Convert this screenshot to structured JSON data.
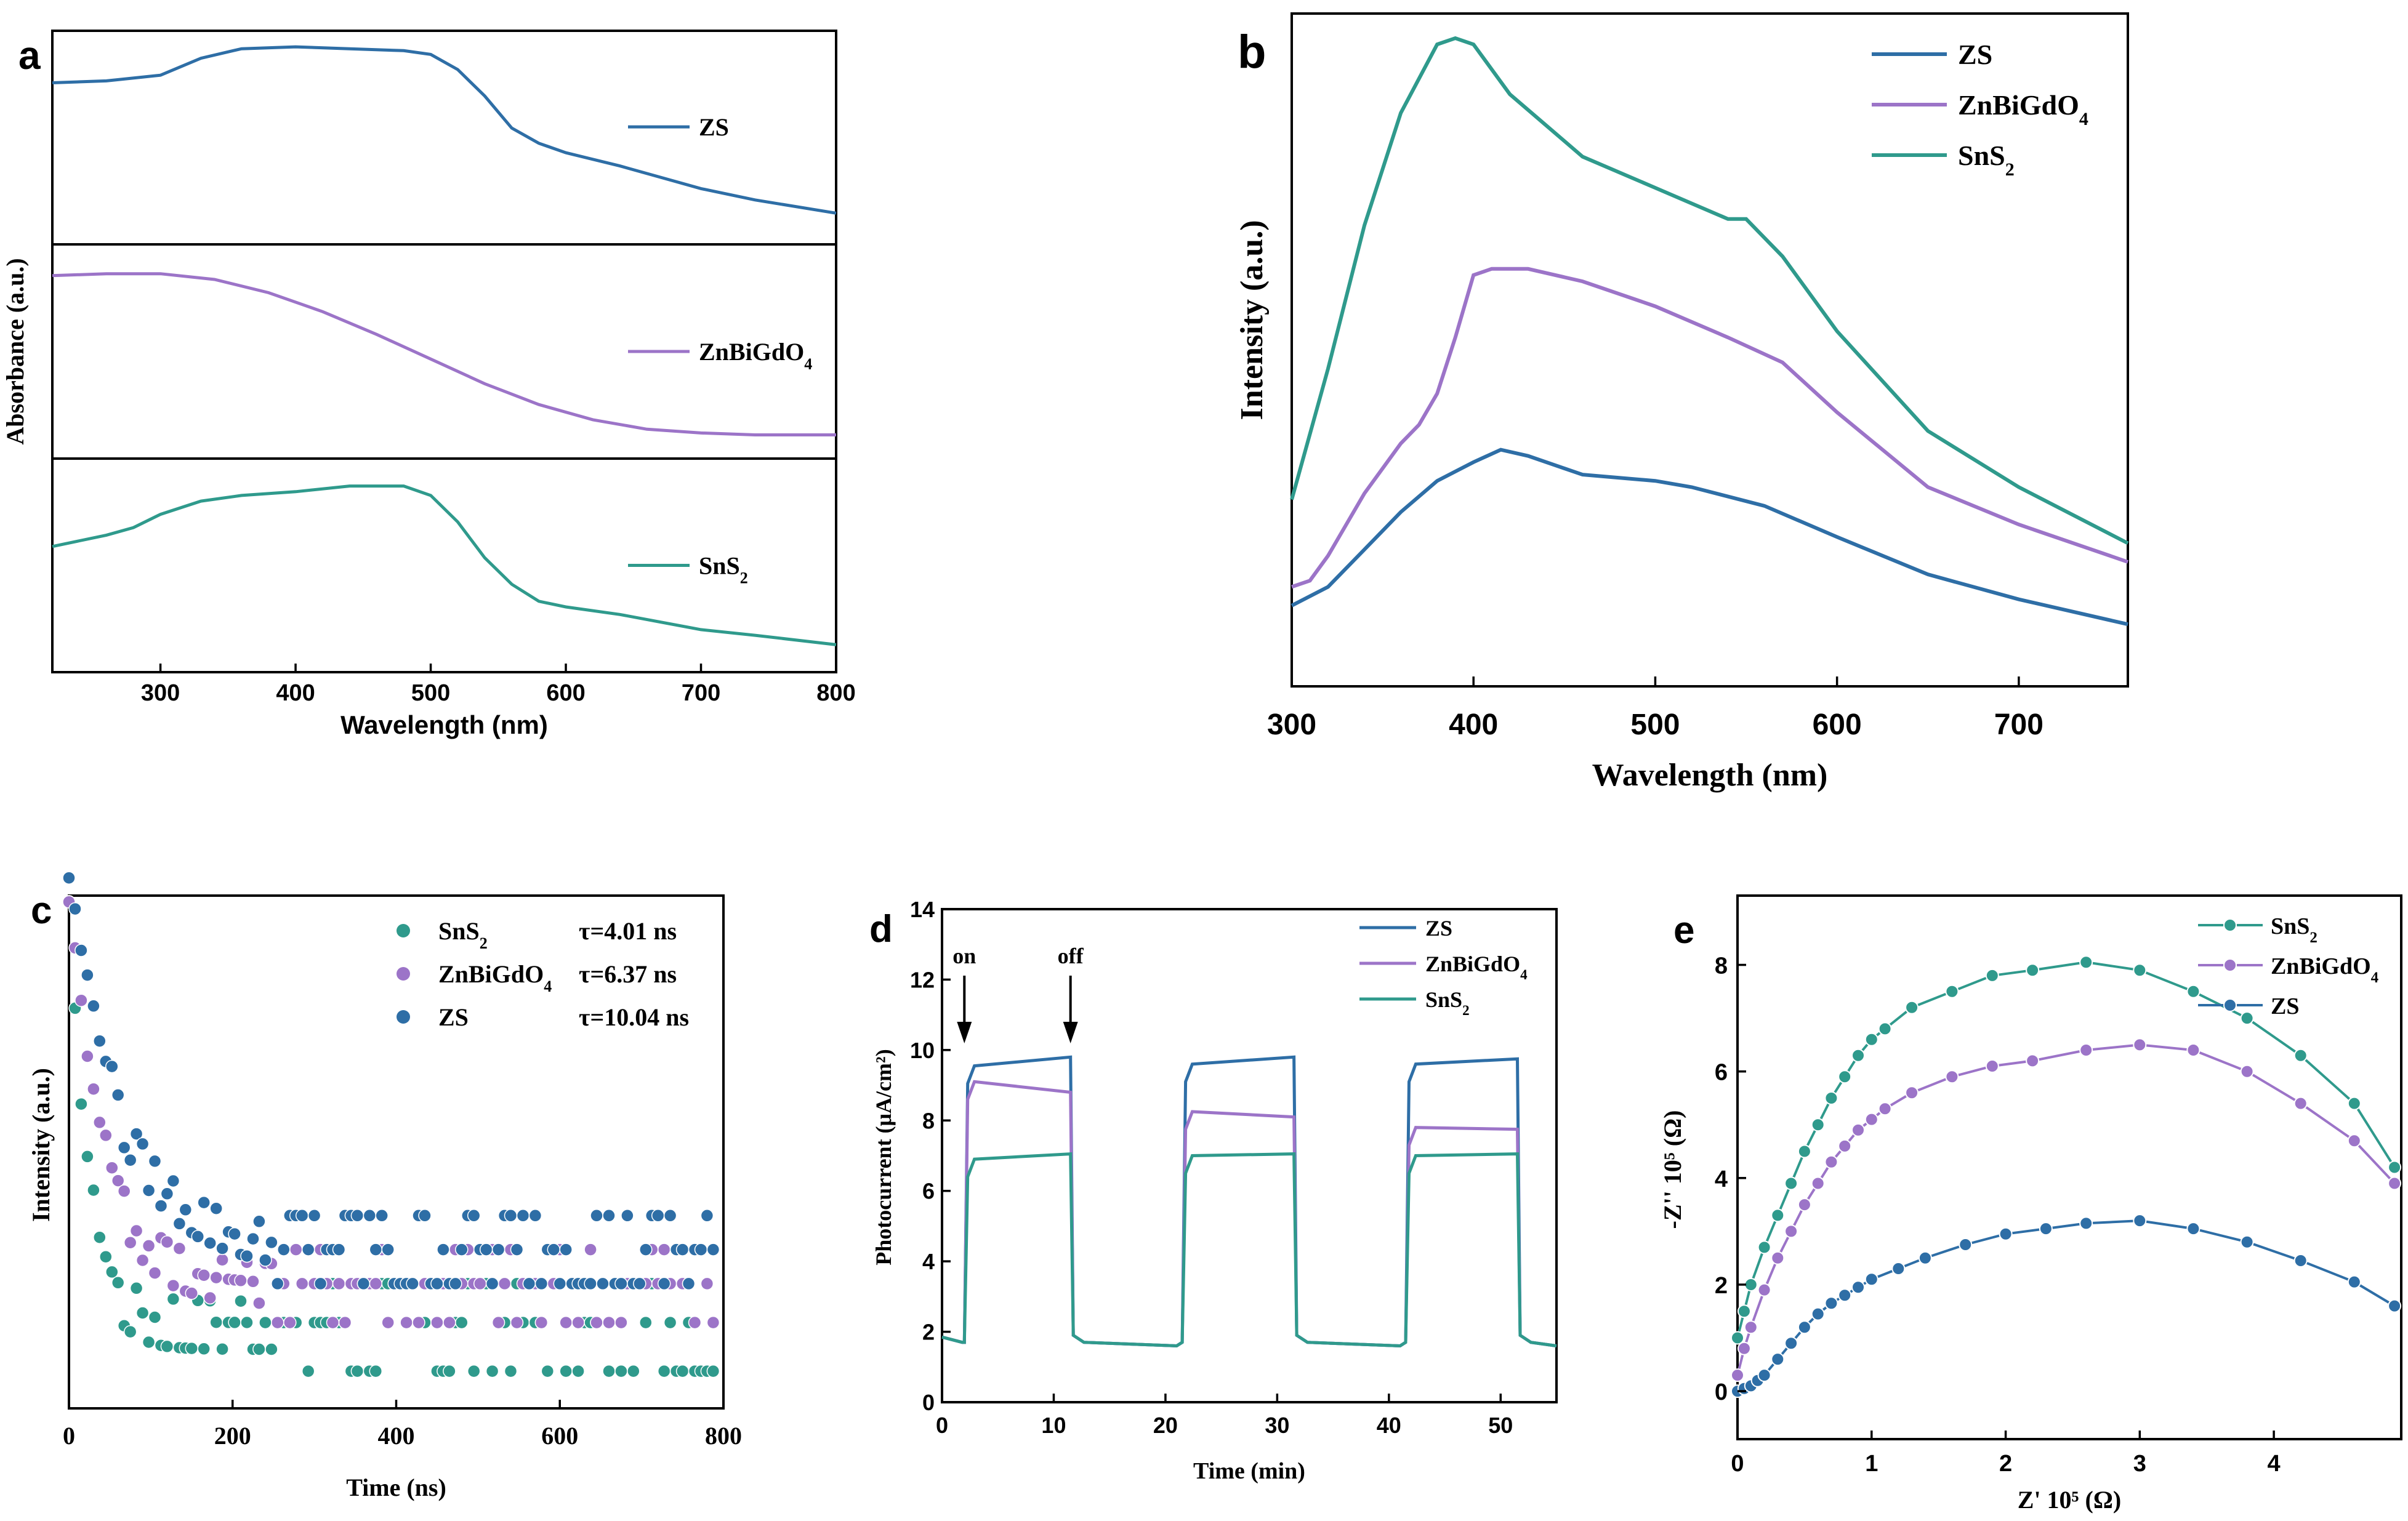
{
  "colors": {
    "zs": "#2e6ea6",
    "znbi": "#9c74c8",
    "sns2": "#2f9a8c"
  },
  "chart_data": [
    {
      "id": "a",
      "panel_label": "a",
      "type": "line",
      "xlabel": "Wavelength (nm)",
      "ylabel": "Absorbance (a.u.)",
      "xlim": [
        220,
        800
      ],
      "xticks": [
        300,
        400,
        500,
        600,
        700,
        800
      ],
      "stacked_panels": true,
      "series": [
        {
          "name": "ZS",
          "sub": "",
          "color_key": "zs",
          "x": [
            220,
            260,
            300,
            330,
            360,
            400,
            440,
            480,
            500,
            520,
            540,
            560,
            580,
            600,
            640,
            680,
            700,
            740,
            800
          ],
          "y": [
            0.79,
            0.8,
            0.83,
            0.92,
            0.97,
            0.98,
            0.97,
            0.96,
            0.94,
            0.86,
            0.72,
            0.55,
            0.47,
            0.42,
            0.35,
            0.27,
            0.23,
            0.17,
            0.1
          ]
        },
        {
          "name": "ZnBiGdO",
          "sub": "4",
          "color_key": "znbi",
          "x": [
            220,
            260,
            300,
            340,
            380,
            420,
            460,
            500,
            540,
            580,
            620,
            660,
            700,
            740,
            800
          ],
          "y": [
            0.9,
            0.91,
            0.91,
            0.88,
            0.81,
            0.71,
            0.59,
            0.46,
            0.33,
            0.22,
            0.14,
            0.09,
            0.07,
            0.06,
            0.06
          ]
        },
        {
          "name": "SnS",
          "sub": "2",
          "color_key": "sns2",
          "x": [
            220,
            260,
            280,
            300,
            330,
            360,
            400,
            440,
            480,
            500,
            520,
            540,
            560,
            580,
            600,
            640,
            700,
            740,
            800
          ],
          "y": [
            0.6,
            0.66,
            0.7,
            0.77,
            0.84,
            0.87,
            0.89,
            0.92,
            0.92,
            0.87,
            0.73,
            0.54,
            0.4,
            0.31,
            0.28,
            0.24,
            0.16,
            0.13,
            0.08
          ]
        }
      ]
    },
    {
      "id": "b",
      "panel_label": "b",
      "type": "line",
      "xlabel": "Wavelength (nm)",
      "ylabel": "Intensity (a.u.)",
      "xlim": [
        300,
        760
      ],
      "ylim": [
        0,
        1
      ],
      "xticks": [
        300,
        400,
        500,
        600,
        700
      ],
      "series": [
        {
          "name": "ZS",
          "sub": "",
          "color_key": "zs",
          "x": [
            300,
            320,
            340,
            360,
            380,
            400,
            415,
            430,
            460,
            500,
            520,
            560,
            600,
            650,
            700,
            760
          ],
          "y": [
            0.09,
            0.12,
            0.18,
            0.24,
            0.29,
            0.32,
            0.34,
            0.33,
            0.3,
            0.29,
            0.28,
            0.25,
            0.2,
            0.14,
            0.1,
            0.06
          ]
        },
        {
          "name": "ZnBiGdO",
          "sub": "4",
          "color_key": "znbi",
          "x": [
            300,
            310,
            320,
            340,
            360,
            370,
            380,
            390,
            400,
            410,
            430,
            460,
            500,
            540,
            570,
            600,
            650,
            700,
            760
          ],
          "y": [
            0.12,
            0.13,
            0.17,
            0.27,
            0.35,
            0.38,
            0.43,
            0.52,
            0.62,
            0.63,
            0.63,
            0.61,
            0.57,
            0.52,
            0.48,
            0.4,
            0.28,
            0.22,
            0.16
          ]
        },
        {
          "name": "SnS",
          "sub": "2",
          "color_key": "sns2",
          "x": [
            300,
            320,
            340,
            360,
            380,
            390,
            400,
            420,
            440,
            460,
            500,
            540,
            550,
            570,
            600,
            650,
            700,
            760
          ],
          "y": [
            0.26,
            0.47,
            0.7,
            0.88,
            0.99,
            1.0,
            0.99,
            0.91,
            0.86,
            0.81,
            0.76,
            0.71,
            0.71,
            0.65,
            0.53,
            0.37,
            0.28,
            0.19
          ]
        }
      ]
    },
    {
      "id": "c",
      "panel_label": "c",
      "type": "scatter",
      "xlabel": "Time (ns)",
      "ylabel": "Intensity (a.u.)",
      "xlim": [
        0,
        800
      ],
      "ylim": [
        0,
        1
      ],
      "xticks": [
        0,
        200,
        400,
        600,
        800
      ],
      "series": [
        {
          "name": "SnS",
          "sub": "2",
          "color_key": "sns2",
          "tau_label": "τ=4.01 ns",
          "tau_ns": 4.01,
          "amp": 0.85,
          "tau_fit": 25,
          "floor": 0.16,
          "levels": [
            0.06,
            0.16,
            0.24
          ]
        },
        {
          "name": "ZnBiGdO",
          "sub": "4",
          "color_key": "znbi",
          "tau_label": "τ=6.37 ns",
          "tau_ns": 6.37,
          "amp": 0.8,
          "tau_fit": 45,
          "floor": 0.24,
          "levels": [
            0.16,
            0.24,
            0.31
          ]
        },
        {
          "name": "ZS",
          "sub": "",
          "color_key": "zs",
          "tau_label": "τ=10.04 ns",
          "tau_ns": 10.04,
          "amp": 0.78,
          "tau_fit": 70,
          "floor": 0.3,
          "levels": [
            0.24,
            0.31,
            0.38
          ]
        }
      ]
    },
    {
      "id": "d",
      "panel_label": "d",
      "type": "line",
      "xlabel": "Time (min)",
      "ylabel": "Photocurrent (μA/cm²)",
      "xlim": [
        0,
        55
      ],
      "ylim": [
        0,
        14
      ],
      "xticks": [
        0,
        10,
        20,
        30,
        40,
        50
      ],
      "yticks": [
        0,
        2,
        4,
        6,
        8,
        10,
        12,
        14
      ],
      "annotations": [
        {
          "text": "on",
          "x": 2
        },
        {
          "text": "off",
          "x": 11.5
        }
      ],
      "cycles": [
        [
          2,
          11.5
        ],
        [
          21.5,
          31.5
        ],
        [
          41.5,
          51.5
        ]
      ],
      "series": [
        {
          "name": "ZS",
          "sub": "",
          "color_key": "zs",
          "dark": 1.6,
          "on_start": [
            9.55,
            9.6,
            9.6
          ],
          "on_end": [
            9.8,
            9.8,
            9.75
          ]
        },
        {
          "name": "ZnBiGdO",
          "sub": "4",
          "color_key": "znbi",
          "dark": 1.6,
          "on_start": [
            9.1,
            8.25,
            7.8
          ],
          "on_end": [
            8.8,
            8.1,
            7.75
          ]
        },
        {
          "name": "SnS",
          "sub": "2",
          "color_key": "sns2",
          "dark": 1.6,
          "on_start": [
            6.9,
            7.0,
            7.0
          ],
          "on_end": [
            7.05,
            7.05,
            7.05
          ]
        }
      ]
    },
    {
      "id": "e",
      "panel_label": "e",
      "type": "line",
      "xlabel": "Z' 10⁵ (Ω)",
      "ylabel": "-Z'' 10⁵ (Ω)",
      "xlim": [
        0,
        4.95
      ],
      "ylim": [
        -0.9,
        9.3
      ],
      "xticks": [
        0,
        1,
        2,
        3,
        4
      ],
      "yticks": [
        0,
        2,
        4,
        6,
        8
      ],
      "series": [
        {
          "name": "SnS",
          "sub": "2",
          "color_key": "sns2",
          "x": [
            0,
            0.05,
            0.1,
            0.2,
            0.3,
            0.4,
            0.5,
            0.6,
            0.7,
            0.8,
            0.9,
            1.0,
            1.1,
            1.3,
            1.6,
            1.9,
            2.2,
            2.6,
            3.0,
            3.4,
            3.8,
            4.2,
            4.6,
            4.9
          ],
          "y": [
            1.0,
            1.5,
            2.0,
            2.7,
            3.3,
            3.9,
            4.5,
            5.0,
            5.5,
            5.9,
            6.3,
            6.6,
            6.8,
            7.2,
            7.5,
            7.8,
            7.9,
            8.05,
            7.9,
            7.5,
            7.0,
            6.3,
            5.4,
            4.2
          ]
        },
        {
          "name": "ZnBiGdO",
          "sub": "4",
          "color_key": "znbi",
          "x": [
            0,
            0.05,
            0.1,
            0.2,
            0.3,
            0.4,
            0.5,
            0.6,
            0.7,
            0.8,
            0.9,
            1.0,
            1.1,
            1.3,
            1.6,
            1.9,
            2.2,
            2.6,
            3.0,
            3.4,
            3.8,
            4.2,
            4.6,
            4.9
          ],
          "y": [
            0.3,
            0.8,
            1.2,
            1.9,
            2.5,
            3.0,
            3.5,
            3.9,
            4.3,
            4.6,
            4.9,
            5.1,
            5.3,
            5.6,
            5.9,
            6.1,
            6.2,
            6.4,
            6.5,
            6.4,
            6.0,
            5.4,
            4.7,
            3.9
          ]
        },
        {
          "name": "ZS",
          "sub": "",
          "color_key": "zs",
          "x": [
            0,
            0.05,
            0.1,
            0.15,
            0.2,
            0.3,
            0.4,
            0.5,
            0.6,
            0.7,
            0.8,
            0.9,
            1.0,
            1.2,
            1.4,
            1.7,
            2.0,
            2.3,
            2.6,
            3.0,
            3.4,
            3.8,
            4.2,
            4.6,
            4.9
          ],
          "y": [
            0.0,
            0.05,
            0.1,
            0.2,
            0.3,
            0.6,
            0.9,
            1.2,
            1.45,
            1.65,
            1.8,
            1.95,
            2.1,
            2.3,
            2.5,
            2.75,
            2.95,
            3.05,
            3.15,
            3.2,
            3.05,
            2.8,
            2.45,
            2.05,
            1.6
          ]
        }
      ]
    }
  ]
}
